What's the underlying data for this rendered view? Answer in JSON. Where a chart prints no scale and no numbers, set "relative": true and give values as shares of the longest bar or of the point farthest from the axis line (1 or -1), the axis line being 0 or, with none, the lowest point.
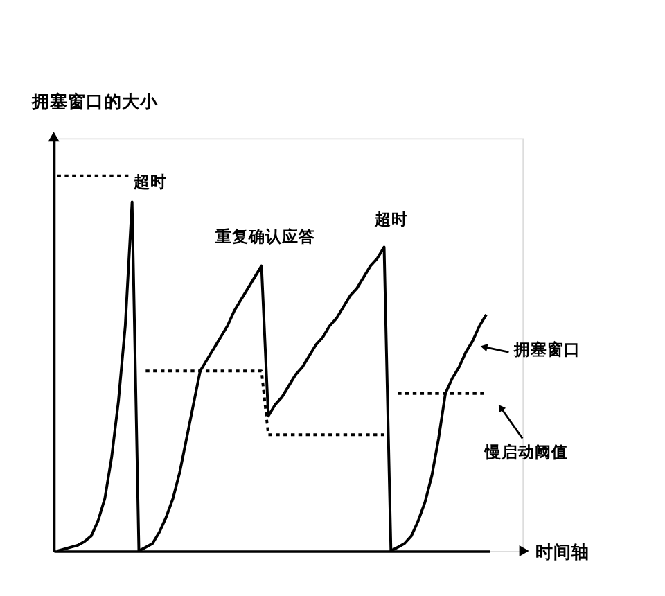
{
  "chart_data": {
    "type": "line",
    "relative": true,
    "xlabel": "时间轴",
    "ylabel": "拥塞窗口的大小",
    "categories": [
      null,
      null,
      null,
      null,
      null,
      null,
      null,
      null,
      null,
      null,
      null,
      null,
      null,
      null,
      null,
      null,
      null,
      null,
      null,
      null,
      null,
      null,
      null,
      null,
      null,
      null,
      null,
      null,
      null,
      null,
      null,
      null,
      null,
      null,
      null,
      null,
      null,
      null,
      null,
      null,
      null,
      null,
      null,
      null,
      null,
      null,
      null,
      null,
      null,
      null,
      null,
      null,
      null,
      null,
      null,
      null,
      null,
      null,
      null,
      null,
      null,
      null,
      null,
      null
    ],
    "series": [
      {
        "color": "#000000",
        "line_style": "solid",
        "values": [
          0,
          0.005,
          0.01,
          0.015,
          0.025,
          0.04,
          0.08,
          0.14,
          0.25,
          0.4,
          0.6,
          0.93,
          0,
          0.01,
          0.02,
          0.05,
          0.09,
          0.14,
          0.21,
          0.3,
          0.39,
          0.48,
          0.51,
          0.54,
          0.57,
          0.6,
          0.64,
          0.67,
          0.7,
          0.73,
          0.76,
          0.36,
          0.39,
          0.41,
          0.44,
          0.47,
          0.49,
          0.52,
          0.55,
          0.57,
          0.6,
          0.62,
          0.65,
          0.68,
          0.7,
          0.73,
          0.76,
          0.78,
          0.81,
          0,
          0.01,
          0.02,
          0.04,
          0.08,
          0.13,
          0.2,
          0.3,
          0.42,
          0.46,
          0.49,
          0.53,
          0.56,
          0.6,
          0.63
        ]
      },
      {
        "color": "#000000",
        "line_style": "dotted",
        "values": [
          1.0,
          1.0,
          1.0,
          1.0,
          1.0,
          1.0,
          1.0,
          1.0,
          1.0,
          1.0,
          1.0,
          1.0,
          null,
          0.48,
          0.48,
          0.48,
          0.48,
          0.48,
          0.48,
          0.48,
          0.48,
          0.48,
          0.48,
          0.48,
          0.48,
          0.48,
          0.48,
          0.48,
          0.48,
          0.48,
          0.48,
          0.31,
          0.31,
          0.31,
          0.31,
          0.31,
          0.31,
          0.31,
          0.31,
          0.31,
          0.31,
          0.31,
          0.31,
          0.31,
          0.31,
          0.31,
          0.31,
          0.31,
          0.31,
          null,
          0.42,
          0.42,
          0.42,
          0.42,
          0.42,
          0.42,
          0.42,
          0.42,
          0.42,
          0.42,
          0.42,
          0.42,
          0.42,
          0.42
        ]
      }
    ],
    "annotations": [
      "超时",
      "重复确认应答",
      "超时",
      "拥塞窗口",
      "慢启动阈值"
    ]
  }
}
